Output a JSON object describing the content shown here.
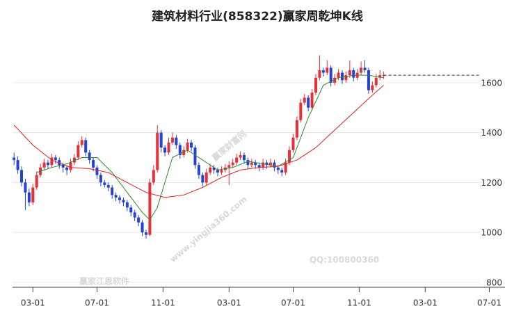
{
  "chart_data": {
    "type": "candlestick",
    "title": "建筑材料行业(858322)赢家周乾坤K线",
    "up_color": "#e8303a",
    "down_color": "#2343d8",
    "xlim": [
      -0.4,
      129.6
    ],
    "ylim": [
      780,
      1820
    ],
    "yticks": [
      800,
      1000,
      1200,
      1400,
      1600
    ],
    "xticks": [
      {
        "value": 5,
        "label": "03-01"
      },
      {
        "value": 22,
        "label": "07-01"
      },
      {
        "value": 39.5,
        "label": "11-01"
      },
      {
        "value": 57,
        "label": "03-01"
      },
      {
        "value": 74,
        "label": "07-01"
      },
      {
        "value": 91.5,
        "label": "11-01"
      },
      {
        "value": 109,
        "label": "03-01"
      },
      {
        "value": 126,
        "label": "07-01"
      }
    ],
    "grid": true,
    "candles": [
      [
        1300,
        1320,
        1270,
        1290
      ],
      [
        1290,
        1305,
        1235,
        1250
      ],
      [
        1250,
        1265,
        1185,
        1200
      ],
      [
        1200,
        1215,
        1090,
        1160
      ],
      [
        1160,
        1175,
        1105,
        1120
      ],
      [
        1120,
        1195,
        1110,
        1180
      ],
      [
        1180,
        1245,
        1170,
        1230
      ],
      [
        1230,
        1275,
        1220,
        1260
      ],
      [
        1260,
        1295,
        1250,
        1280
      ],
      [
        1280,
        1290,
        1255,
        1270
      ],
      [
        1270,
        1315,
        1260,
        1300
      ],
      [
        1300,
        1310,
        1275,
        1290
      ],
      [
        1290,
        1300,
        1255,
        1270
      ],
      [
        1270,
        1280,
        1240,
        1260
      ],
      [
        1260,
        1270,
        1230,
        1250
      ],
      [
        1250,
        1295,
        1240,
        1280
      ],
      [
        1280,
        1315,
        1270,
        1300
      ],
      [
        1300,
        1365,
        1290,
        1350
      ],
      [
        1350,
        1385,
        1340,
        1370
      ],
      [
        1370,
        1380,
        1305,
        1320
      ],
      [
        1320,
        1330,
        1275,
        1290
      ],
      [
        1290,
        1300,
        1245,
        1260
      ],
      [
        1260,
        1270,
        1215,
        1230
      ],
      [
        1230,
        1240,
        1185,
        1200
      ],
      [
        1200,
        1210,
        1180,
        1190
      ],
      [
        1190,
        1200,
        1165,
        1180
      ],
      [
        1180,
        1190,
        1135,
        1150
      ],
      [
        1150,
        1160,
        1125,
        1140
      ],
      [
        1140,
        1150,
        1115,
        1130
      ],
      [
        1130,
        1140,
        1105,
        1120
      ],
      [
        1120,
        1130,
        1085,
        1100
      ],
      [
        1100,
        1110,
        1065,
        1080
      ],
      [
        1080,
        1090,
        1045,
        1060
      ],
      [
        1060,
        1070,
        1025,
        1040
      ],
      [
        1040,
        1050,
        985,
        1000
      ],
      [
        1000,
        1010,
        975,
        990
      ],
      [
        990,
        1215,
        985,
        1200
      ],
      [
        1200,
        1270,
        1190,
        1250
      ],
      [
        1250,
        1430,
        1240,
        1400
      ],
      [
        1400,
        1410,
        1320,
        1340
      ],
      [
        1340,
        1350,
        1305,
        1320
      ],
      [
        1320,
        1380,
        1310,
        1360
      ],
      [
        1360,
        1400,
        1350,
        1380
      ],
      [
        1380,
        1390,
        1335,
        1350
      ],
      [
        1350,
        1360,
        1295,
        1310
      ],
      [
        1310,
        1345,
        1300,
        1330
      ],
      [
        1330,
        1375,
        1320,
        1360
      ],
      [
        1360,
        1370,
        1325,
        1340
      ],
      [
        1340,
        1350,
        1255,
        1270
      ],
      [
        1270,
        1280,
        1215,
        1230
      ],
      [
        1230,
        1240,
        1185,
        1200
      ],
      [
        1200,
        1255,
        1190,
        1240
      ],
      [
        1240,
        1275,
        1230,
        1260
      ],
      [
        1260,
        1270,
        1235,
        1250
      ],
      [
        1250,
        1260,
        1225,
        1240
      ],
      [
        1240,
        1265,
        1230,
        1250
      ],
      [
        1250,
        1275,
        1240,
        1260
      ],
      [
        1260,
        1285,
        1190,
        1270
      ],
      [
        1270,
        1295,
        1260,
        1280
      ],
      [
        1280,
        1315,
        1270,
        1300
      ],
      [
        1300,
        1325,
        1290,
        1310
      ],
      [
        1310,
        1320,
        1275,
        1290
      ],
      [
        1290,
        1300,
        1255,
        1270
      ],
      [
        1270,
        1295,
        1260,
        1280
      ],
      [
        1280,
        1290,
        1255,
        1270
      ],
      [
        1270,
        1280,
        1245,
        1260
      ],
      [
        1260,
        1295,
        1250,
        1280
      ],
      [
        1280,
        1290,
        1255,
        1270
      ],
      [
        1270,
        1295,
        1260,
        1280
      ],
      [
        1280,
        1290,
        1245,
        1260
      ],
      [
        1260,
        1270,
        1235,
        1250
      ],
      [
        1250,
        1260,
        1225,
        1240
      ],
      [
        1240,
        1295,
        1230,
        1280
      ],
      [
        1280,
        1345,
        1270,
        1330
      ],
      [
        1330,
        1395,
        1320,
        1380
      ],
      [
        1380,
        1465,
        1370,
        1450
      ],
      [
        1450,
        1535,
        1440,
        1520
      ],
      [
        1520,
        1555,
        1510,
        1540
      ],
      [
        1540,
        1550,
        1485,
        1500
      ],
      [
        1500,
        1575,
        1490,
        1560
      ],
      [
        1560,
        1635,
        1550,
        1620
      ],
      [
        1620,
        1710,
        1610,
        1650
      ],
      [
        1650,
        1660,
        1625,
        1640
      ],
      [
        1640,
        1690,
        1630,
        1660
      ],
      [
        1660,
        1670,
        1585,
        1600
      ],
      [
        1600,
        1635,
        1590,
        1620
      ],
      [
        1620,
        1655,
        1610,
        1640
      ],
      [
        1640,
        1650,
        1595,
        1610
      ],
      [
        1610,
        1645,
        1600,
        1630
      ],
      [
        1630,
        1690,
        1620,
        1650
      ],
      [
        1650,
        1660,
        1605,
        1620
      ],
      [
        1620,
        1655,
        1610,
        1640
      ],
      [
        1640,
        1685,
        1630,
        1660
      ],
      [
        1660,
        1690,
        1640,
        1650
      ],
      [
        1650,
        1660,
        1555,
        1570
      ],
      [
        1570,
        1605,
        1560,
        1590
      ],
      [
        1590,
        1635,
        1580,
        1620
      ],
      [
        1620,
        1650,
        1610,
        1630
      ],
      [
        1630,
        1645,
        1615,
        1630
      ]
    ],
    "series": [
      {
        "color": "#2e8b2e",
        "x": [
          6,
          10,
          14,
          18,
          22,
          26,
          30,
          34,
          36,
          38,
          42,
          46,
          50,
          54,
          58,
          62,
          66,
          70,
          74,
          78,
          82,
          86,
          90,
          94,
          98
        ],
        "values": [
          1240,
          1260,
          1275,
          1300,
          1300,
          1240,
          1160,
          1080,
          1050,
          1100,
          1300,
          1330,
          1290,
          1250,
          1260,
          1285,
          1275,
          1265,
          1300,
          1460,
          1590,
          1620,
          1630,
          1630,
          1620
        ]
      },
      {
        "color": "#e02020",
        "x": [
          0,
          5,
          10,
          15,
          20,
          25,
          30,
          35,
          40,
          45,
          50,
          55,
          60,
          65,
          70,
          75,
          80,
          85,
          90,
          95,
          98
        ],
        "values": [
          1430,
          1350,
          1290,
          1260,
          1255,
          1240,
          1200,
          1160,
          1140,
          1150,
          1180,
          1220,
          1250,
          1260,
          1265,
          1290,
          1340,
          1410,
          1480,
          1550,
          1590
        ]
      }
    ],
    "watermarks": [
      "赢家财富网",
      "www.yingjia360.com",
      "QQ:100800360",
      "赢家江恩软件"
    ]
  }
}
